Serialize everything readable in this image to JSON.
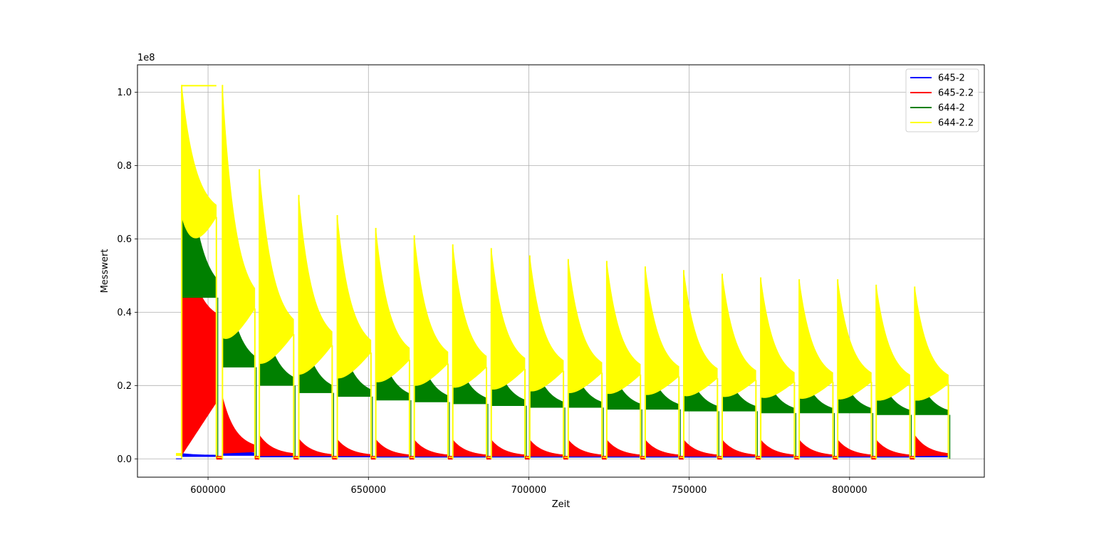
{
  "chart_data": {
    "type": "area",
    "title": "",
    "xlabel": "Zeit",
    "ylabel": "Messwert",
    "y_offset_label": "1e8",
    "xlim": [
      578000,
      842000
    ],
    "ylim": [
      -0.05,
      1.075
    ],
    "x_ticks": [
      600000,
      650000,
      700000,
      750000,
      800000
    ],
    "x_tick_labels": [
      "600000",
      "650000",
      "700000",
      "750000",
      "800000"
    ],
    "y_ticks": [
      0.0,
      0.2,
      0.4,
      0.6,
      0.8,
      1.0
    ],
    "y_tick_labels": [
      "0.0",
      "0.2",
      "0.4",
      "0.6",
      "0.8",
      "1.0"
    ],
    "grid": true,
    "legend_position": "top-right",
    "baseline_start": 590000,
    "cycles": [
      {
        "start": 591800,
        "end": 602600,
        "yellow": [
          1.02,
          0.66
        ],
        "green": [
          1.02,
          0.44,
          0.66,
          0.44
        ],
        "red": [
          0.67,
          0.37
        ],
        "blue": [
          0.015,
          0.01
        ]
      },
      {
        "start": 604500,
        "end": 614600,
        "yellow": [
          1.02,
          0.41
        ],
        "green": [
          0.58,
          0.25,
          0.33,
          0.25
        ],
        "red": [
          0.17,
          0.025
        ],
        "blue": [
          0.035,
          0.015
        ]
      },
      {
        "start": 616000,
        "end": 626700,
        "yellow": [
          0.79,
          0.34
        ],
        "green": [
          0.45,
          0.2,
          0.26,
          0.2
        ],
        "red": [
          0.065,
          0.01
        ],
        "blue": [
          0.028,
          0.008
        ]
      },
      {
        "start": 628300,
        "end": 638700,
        "yellow": [
          0.72,
          0.31
        ],
        "green": [
          0.41,
          0.18,
          0.23,
          0.18
        ],
        "red": [
          0.055,
          0.008
        ],
        "blue": [
          0.022,
          0.008
        ]
      },
      {
        "start": 640300,
        "end": 650800,
        "yellow": [
          0.665,
          0.29
        ],
        "green": [
          0.38,
          0.17,
          0.22,
          0.17
        ],
        "red": [
          0.053,
          0.008
        ],
        "blue": [
          0.02,
          0.008
        ]
      },
      {
        "start": 652300,
        "end": 662800,
        "yellow": [
          0.63,
          0.27
        ],
        "green": [
          0.36,
          0.16,
          0.21,
          0.16
        ],
        "red": [
          0.053,
          0.007
        ],
        "blue": [
          0.022,
          0.007
        ]
      },
      {
        "start": 664300,
        "end": 674800,
        "yellow": [
          0.61,
          0.26
        ],
        "green": [
          0.35,
          0.155,
          0.2,
          0.155
        ],
        "red": [
          0.052,
          0.007
        ],
        "blue": [
          0.022,
          0.007
        ]
      },
      {
        "start": 676300,
        "end": 686800,
        "yellow": [
          0.585,
          0.25
        ],
        "green": [
          0.33,
          0.15,
          0.195,
          0.15
        ],
        "red": [
          0.052,
          0.007
        ],
        "blue": [
          0.022,
          0.007
        ]
      },
      {
        "start": 688300,
        "end": 698800,
        "yellow": [
          0.575,
          0.245
        ],
        "green": [
          0.32,
          0.145,
          0.19,
          0.145
        ],
        "red": [
          0.052,
          0.007
        ],
        "blue": [
          0.022,
          0.007
        ]
      },
      {
        "start": 700300,
        "end": 710800,
        "yellow": [
          0.555,
          0.24
        ],
        "green": [
          0.31,
          0.14,
          0.185,
          0.14
        ],
        "red": [
          0.052,
          0.007
        ],
        "blue": [
          0.022,
          0.007
        ]
      },
      {
        "start": 712300,
        "end": 722800,
        "yellow": [
          0.545,
          0.235
        ],
        "green": [
          0.305,
          0.14,
          0.18,
          0.14
        ],
        "red": [
          0.052,
          0.007
        ],
        "blue": [
          0.022,
          0.007
        ]
      },
      {
        "start": 724300,
        "end": 734800,
        "yellow": [
          0.54,
          0.23
        ],
        "green": [
          0.3,
          0.135,
          0.178,
          0.135
        ],
        "red": [
          0.052,
          0.007
        ],
        "blue": [
          0.022,
          0.007
        ]
      },
      {
        "start": 736300,
        "end": 746800,
        "yellow": [
          0.525,
          0.225
        ],
        "green": [
          0.29,
          0.135,
          0.175,
          0.135
        ],
        "red": [
          0.052,
          0.007
        ],
        "blue": [
          0.022,
          0.007
        ]
      },
      {
        "start": 748300,
        "end": 758800,
        "yellow": [
          0.515,
          0.22
        ],
        "green": [
          0.285,
          0.13,
          0.172,
          0.13
        ],
        "red": [
          0.052,
          0.007
        ],
        "blue": [
          0.024,
          0.007
        ]
      },
      {
        "start": 760300,
        "end": 770800,
        "yellow": [
          0.505,
          0.215
        ],
        "green": [
          0.28,
          0.13,
          0.17,
          0.13
        ],
        "red": [
          0.052,
          0.007
        ],
        "blue": [
          0.026,
          0.007
        ]
      },
      {
        "start": 772300,
        "end": 782800,
        "yellow": [
          0.495,
          0.21
        ],
        "green": [
          0.275,
          0.125,
          0.168,
          0.125
        ],
        "red": [
          0.052,
          0.007
        ],
        "blue": [
          0.026,
          0.007
        ]
      },
      {
        "start": 784300,
        "end": 794800,
        "yellow": [
          0.49,
          0.21
        ],
        "green": [
          0.27,
          0.125,
          0.165,
          0.125
        ],
        "red": [
          0.052,
          0.007
        ],
        "blue": [
          0.026,
          0.007
        ]
      },
      {
        "start": 796300,
        "end": 806800,
        "yellow": [
          0.49,
          0.21
        ],
        "green": [
          0.27,
          0.125,
          0.163,
          0.125
        ],
        "red": [
          0.052,
          0.007
        ],
        "blue": [
          0.026,
          0.007
        ]
      },
      {
        "start": 808300,
        "end": 818800,
        "yellow": [
          0.475,
          0.205
        ],
        "green": [
          0.265,
          0.12,
          0.16,
          0.12
        ],
        "red": [
          0.052,
          0.007
        ],
        "blue": [
          0.026,
          0.007
        ]
      },
      {
        "start": 820300,
        "end": 830800,
        "yellow": [
          0.47,
          0.205
        ],
        "green": [
          0.26,
          0.12,
          0.16,
          0.12
        ],
        "red": [
          0.065,
          0.01
        ],
        "blue": [
          0.03,
          0.008
        ]
      }
    ],
    "series": [
      {
        "name": "645-2",
        "color": "#0000ff"
      },
      {
        "name": "645-2.2",
        "color": "#ff0000"
      },
      {
        "name": "644-2",
        "color": "#008000"
      },
      {
        "name": "644-2.2",
        "color": "#ffff00"
      }
    ]
  }
}
